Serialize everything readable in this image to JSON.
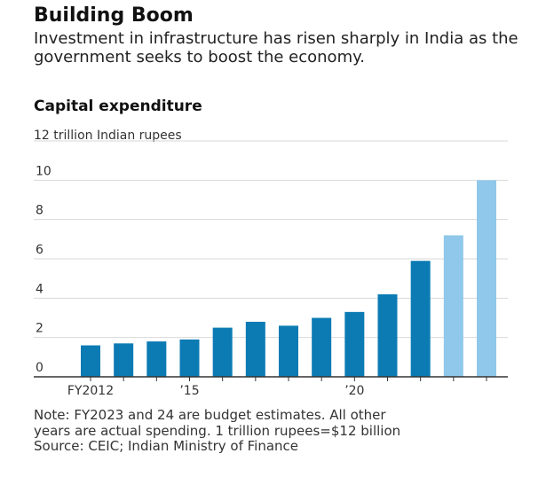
{
  "header": {
    "title": "Building Boom",
    "subtitle": "Investment in infrastructure has risen sharply in India as the government seeks to boost the economy."
  },
  "chart_data": {
    "type": "bar",
    "title": "Capital expenditure",
    "ylabel": "12 trillion Indian rupees",
    "ylim": [
      0,
      12
    ],
    "yticks": [
      "0",
      "2",
      "4",
      "6",
      "8",
      "10"
    ],
    "ytick_values": [
      0,
      2,
      4,
      6,
      8,
      10
    ],
    "categories": [
      "FY2012",
      "FY2013",
      "FY2014",
      "FY2015",
      "FY2016",
      "FY2017",
      "FY2018",
      "FY2019",
      "FY2020",
      "FY2021",
      "FY2022",
      "FY2023",
      "FY2024"
    ],
    "xtick_labels": [
      {
        "index": 0,
        "label": "FY2012"
      },
      {
        "index": 3,
        "label": "’15"
      },
      {
        "index": 8,
        "label": "’20"
      }
    ],
    "values": [
      1.6,
      1.7,
      1.8,
      1.9,
      2.5,
      2.8,
      2.6,
      3.0,
      3.3,
      4.2,
      5.9,
      7.2,
      10.0
    ],
    "estimate": [
      false,
      false,
      false,
      false,
      false,
      false,
      false,
      false,
      false,
      false,
      false,
      true,
      true
    ],
    "colors": {
      "actual": "#0c7bb3",
      "estimate": "#8fc8ea",
      "grid": "#d9d9d9",
      "axis": "#333333"
    },
    "grid": true
  },
  "notes": {
    "line1": "Note: FY2023 and 24 are budget estimates. All other",
    "line2": "years are actual spending. 1 trillion rupees=$12 billion",
    "line3": "Source: CEIC; Indian Ministry of Finance"
  }
}
